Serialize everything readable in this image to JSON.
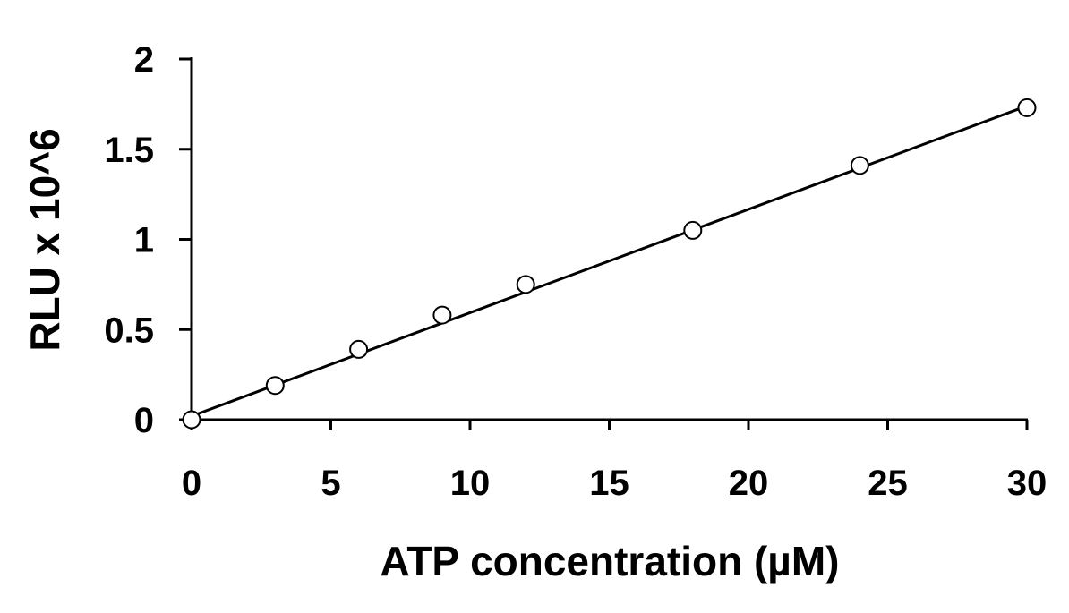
{
  "chart_data": {
    "type": "scatter",
    "xlabel": "ATP concentration (µM)",
    "ylabel": "RLU x 10^6",
    "xlim": [
      0,
      30
    ],
    "ylim": [
      0,
      2
    ],
    "x_ticks": [
      0,
      5,
      10,
      15,
      20,
      25,
      30
    ],
    "y_ticks": [
      0,
      0.5,
      1,
      1.5,
      2
    ],
    "x_tick_labels": [
      "0",
      "5",
      "10",
      "15",
      "20",
      "25",
      "30"
    ],
    "y_tick_labels": [
      "0",
      "0.5",
      "1",
      "1.5",
      "2"
    ],
    "series": [
      {
        "marker": "open-circle",
        "x": [
          0,
          3,
          6,
          9,
          12,
          18,
          24,
          30
        ],
        "y": [
          0.0,
          0.19,
          0.39,
          0.58,
          0.75,
          1.05,
          1.41,
          1.73
        ]
      }
    ],
    "trendline": {
      "type": "linear",
      "x": [
        0,
        30
      ],
      "y": [
        0.02,
        1.74
      ]
    },
    "grid": false,
    "legend": "none",
    "colors": {
      "marker_stroke": "#000000",
      "marker_fill": "#ffffff",
      "line": "#000000",
      "axis": "#000000"
    }
  }
}
